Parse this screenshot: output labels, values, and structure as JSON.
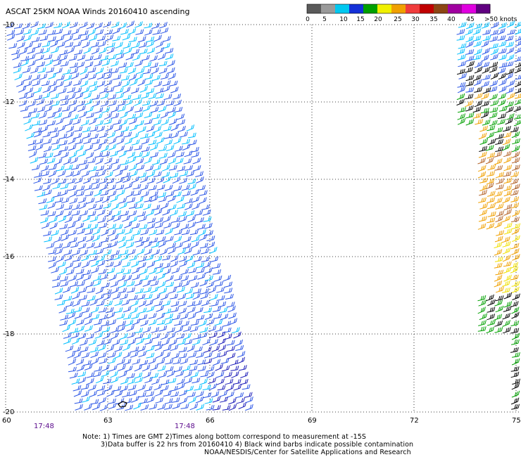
{
  "title": "ASCAT 25KM NOAA Winds 20160410 ascending",
  "legend": {
    "ticks": [
      "0",
      "5",
      "10",
      "15",
      "20",
      "25",
      "30",
      "35",
      "40",
      "45",
      ">50 knots"
    ],
    "colors": [
      "#5a5a5a",
      "#9a9a9a",
      "#00c8f0",
      "#1430d8",
      "#00a000",
      "#f0f000",
      "#f0a000",
      "#f03c3c",
      "#c00000",
      "#8c4614",
      "#a000a0",
      "#e000e0",
      "#600080"
    ]
  },
  "axes": {
    "lat_labels": [
      "-10",
      "-12",
      "-14",
      "-16",
      "-18",
      "-20"
    ],
    "lon_labels": [
      "60",
      "63",
      "66",
      "69",
      "72",
      "75"
    ],
    "time_labels": [
      "17:48",
      "17:48"
    ]
  },
  "notes": {
    "line1": "Note: 1) Times are GMT 2)Times along bottom correspond to measurement at -15S",
    "line2": "3)Data buffer is 22 hrs from 20160410 4) Black wind barbs indicate possible contamination",
    "line3": "NOAA/NESDIS/Center for Satellite Applications and Research"
  },
  "colors": {
    "grid": "#000000",
    "time_label": "#5a0a8c",
    "barb_light": "#00bfff",
    "barb_mid": "#2a55e6",
    "barb_dark": "#1a1ab8",
    "barb_green": "#00a000",
    "barb_yellow": "#f0e000",
    "barb_orange": "#f0a000",
    "barb_brown": "#b4642a",
    "barb_black": "#000000"
  }
}
